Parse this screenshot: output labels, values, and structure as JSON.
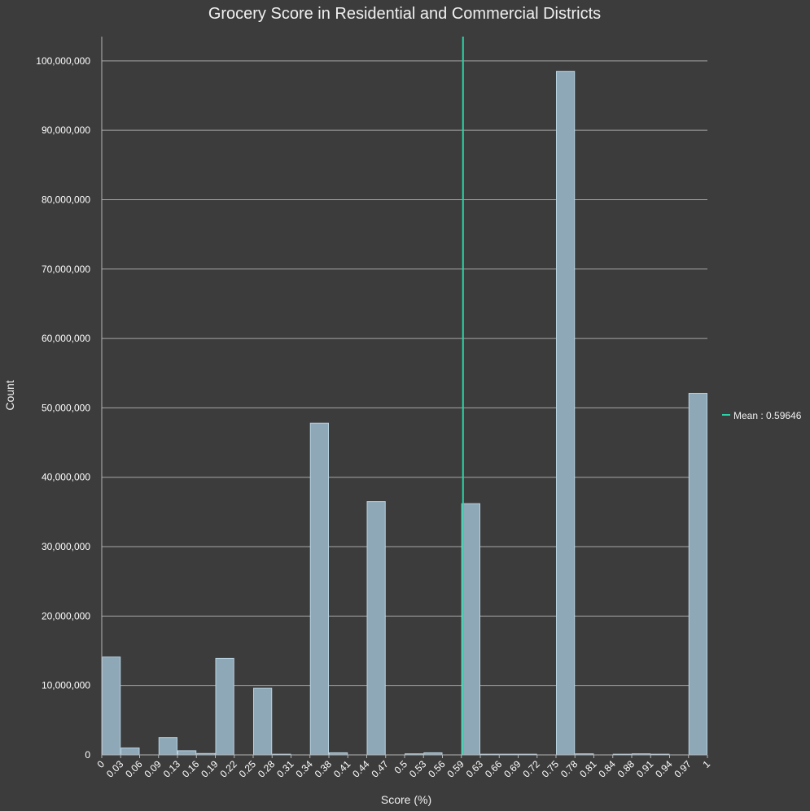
{
  "chart_data": {
    "type": "bar",
    "title": "Grocery Score in Residential and Commercial Districts",
    "xlabel": "Score (%)",
    "ylabel": "Count",
    "x_tick_labels": [
      "0",
      "0.03",
      "0.06",
      "0.09",
      "0.13",
      "0.16",
      "0.19",
      "0.22",
      "0.25",
      "0.28",
      "0.31",
      "0.34",
      "0.38",
      "0.41",
      "0.44",
      "0.47",
      "0.5",
      "0.53",
      "0.56",
      "0.59",
      "0.63",
      "0.66",
      "0.69",
      "0.72",
      "0.75",
      "0.78",
      "0.81",
      "0.84",
      "0.88",
      "0.91",
      "0.94",
      "0.97",
      "1"
    ],
    "y_tick_labels": [
      "0",
      "10,000,000",
      "20,000,000",
      "30,000,000",
      "40,000,000",
      "50,000,000",
      "60,000,000",
      "70,000,000",
      "80,000,000",
      "90,000,000",
      "100,000,000"
    ],
    "y_ticks": [
      0,
      10000000,
      20000000,
      30000000,
      40000000,
      50000000,
      60000000,
      70000000,
      80000000,
      90000000,
      100000000
    ],
    "ylim": [
      0,
      103500000
    ],
    "xlim": [
      0,
      1
    ],
    "bin_count": 32,
    "values": [
      14100000,
      1000000,
      0,
      2500000,
      600000,
      200000,
      13900000,
      0,
      9600000,
      100000,
      0,
      47800000,
      300000,
      0,
      36500000,
      0,
      150000,
      300000,
      0,
      36200000,
      100000,
      100000,
      100000,
      0,
      98500000,
      150000,
      0,
      100000,
      150000,
      100000,
      0,
      52100000
    ],
    "mean": 0.59646,
    "mean_label": "Mean : 0.59646",
    "grid": true,
    "legend_placement": "right",
    "colors": {
      "background": "#3c3c3c",
      "bar_fill": "#8ea8b8",
      "bar_stroke": "#b7d2e0",
      "grid": "#a6a6a6",
      "axis": "#b4b4b4",
      "text": "#ffffff",
      "mean_line": "#2bd3a6"
    }
  }
}
